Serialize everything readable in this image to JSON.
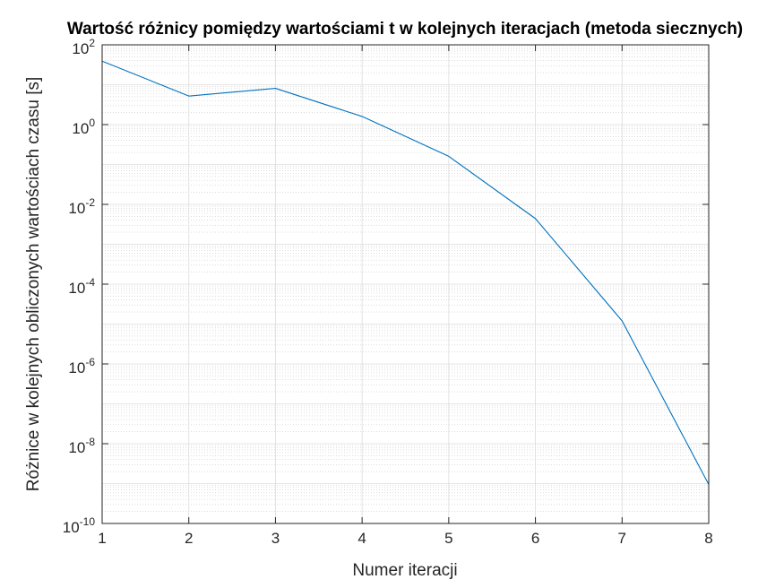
{
  "chart_data": {
    "type": "line",
    "title": "Wartość różnicy pomiędzy wartościami t w kolejnych iteracjach (metoda siecznych)",
    "xlabel": "Numer iteracji",
    "ylabel": "Różnice w kolejnych obliczonych wartościach czasu [s]",
    "xlim": [
      1,
      8
    ],
    "ylim": [
      1e-10,
      100
    ],
    "yscale": "log",
    "grid": true,
    "minor_grid": true,
    "x_ticks": [
      "1",
      "2",
      "3",
      "4",
      "5",
      "6",
      "7",
      "8"
    ],
    "y_ticks": [
      {
        "base": "10",
        "exp": "-10"
      },
      {
        "base": "10",
        "exp": "-8"
      },
      {
        "base": "10",
        "exp": "-6"
      },
      {
        "base": "10",
        "exp": "-4"
      },
      {
        "base": "10",
        "exp": "-2"
      },
      {
        "base": "10",
        "exp": "0"
      },
      {
        "base": "10",
        "exp": "2"
      }
    ],
    "series": [
      {
        "color": "#0072BD",
        "x": [
          1,
          2,
          3,
          4,
          5,
          6,
          7,
          8
        ],
        "y": [
          39,
          5.2,
          8.1,
          1.6,
          0.16,
          0.0044,
          1.2e-05,
          9.5e-10
        ]
      }
    ]
  }
}
